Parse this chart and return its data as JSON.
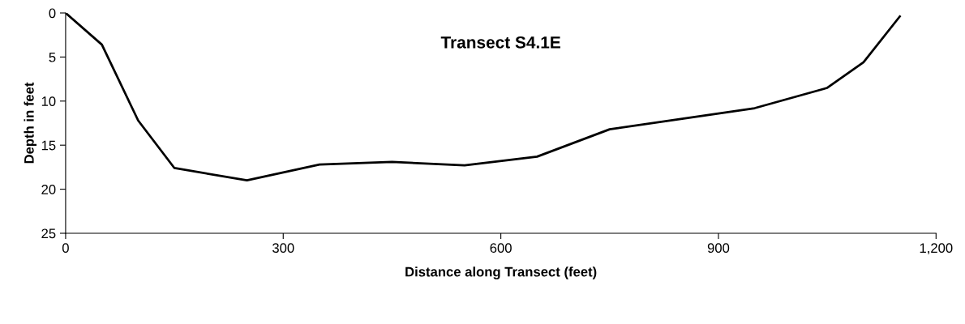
{
  "chart_data": {
    "type": "line",
    "title": "Transect S4.1E",
    "xlabel": "Distance along Transect (feet)",
    "ylabel": "Depth in feet",
    "x": [
      0,
      50,
      100,
      150,
      250,
      350,
      450,
      550,
      650,
      750,
      850,
      950,
      1050,
      1100,
      1150
    ],
    "series": [
      {
        "color": "#000000",
        "values": [
          0,
          3.6,
          12.2,
          17.6,
          19.0,
          17.2,
          16.9,
          17.3,
          16.3,
          13.2,
          12.0,
          10.8,
          8.5,
          5.6,
          0.4
        ]
      }
    ],
    "xlim": [
      0,
      1200
    ],
    "xticks": [
      0,
      300,
      600,
      900,
      {
        "value": 1200,
        "label": "1,200"
      }
    ],
    "ylim": [
      25,
      0
    ],
    "yticks": [
      0,
      5,
      10,
      15,
      20,
      25
    ],
    "grid": false,
    "legend": false,
    "marker": "none",
    "line_style": "solid"
  }
}
